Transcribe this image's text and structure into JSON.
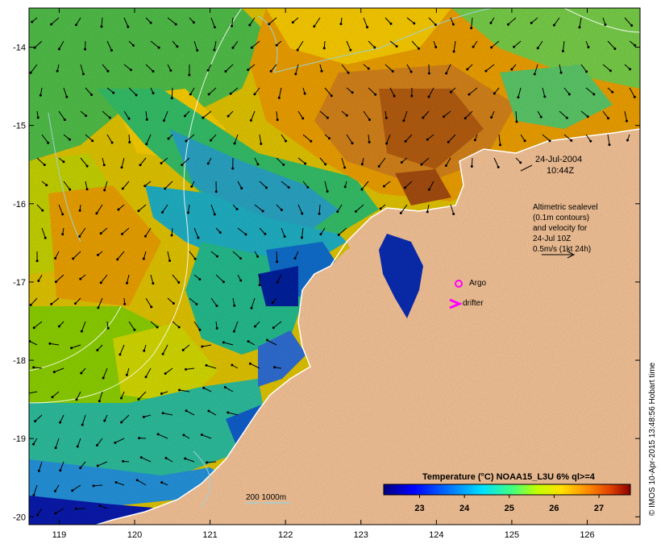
{
  "map": {
    "lon_range": [
      118.6,
      126.7
    ],
    "lat_range": [
      -20.1,
      -13.5
    ],
    "x_ticks": [
      "119",
      "120",
      "121",
      "122",
      "123",
      "124",
      "125",
      "126"
    ],
    "y_ticks": [
      "-14",
      "-15",
      "-16",
      "-17",
      "-18",
      "-19",
      "-20"
    ],
    "colors": {
      "land": "#fbc89b",
      "coast": "#ffffff",
      "contour_sealevel": "#ffffff",
      "contour_bathy": "#9fd0d4",
      "markers": "#ff00ff"
    }
  },
  "annotations": {
    "date": "24-Jul-2004",
    "time": "10:44Z",
    "altimetry_lines": [
      "Altimetric sealevel",
      "(0.1m contours)",
      "and velocity for",
      "24-Jul 10Z",
      "0.5m/s (1kt 24h)"
    ],
    "argo_label": "Argo",
    "drifter_label": "drifter",
    "bathy_label": "200  1000m"
  },
  "colorbar": {
    "title": "Temperature (°C) NOAA15_L3U 6% ql>=4",
    "ticks": [
      "23",
      "24",
      "25",
      "26",
      "27"
    ],
    "range": [
      22.2,
      27.7
    ],
    "colors": [
      "#00007f",
      "#0000ff",
      "#0080ff",
      "#00e0ff",
      "#40ff80",
      "#c0ff00",
      "#ffe000",
      "#ff9000",
      "#e04000",
      "#8b0000"
    ]
  },
  "credit": "© IMOS 10-Apr-2015 13:48:56 Hobart time"
}
